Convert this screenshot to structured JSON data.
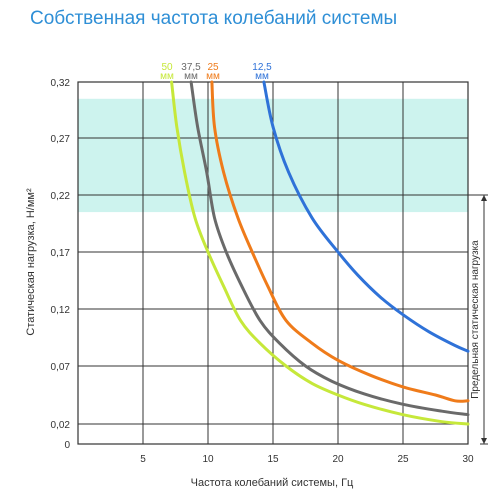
{
  "page": {
    "title": "Собственная частота колебаний системы"
  },
  "chart_data": {
    "type": "line",
    "title": "Собственная частота колебаний системы",
    "xlabel": "Частота колебаний системы, Гц",
    "ylabel": "Статическая нагрузка, Н/мм²",
    "xlim": [
      0,
      30
    ],
    "ylim": [
      0,
      0.32
    ],
    "x_ticks": [
      "0",
      "5",
      "10",
      "15",
      "20",
      "25",
      "30"
    ],
    "y_ticks": [
      "0",
      "0,02",
      "0,07",
      "0,12",
      "0,17",
      "0,22",
      "0,27",
      "0,32"
    ],
    "grid": true,
    "shaded_band": {
      "y_from": 0.205,
      "y_to": 0.305,
      "color": "#cdf3ee"
    },
    "limit_range": {
      "label": "Предельная статическая нагрузка",
      "y_from": 0.0,
      "y_to": 0.22
    },
    "series": [
      {
        "name": "50",
        "unit": "мм",
        "color": "#c6e83a",
        "points": [
          [
            7.2,
            0.32
          ],
          [
            7.6,
            0.28
          ],
          [
            8.2,
            0.24
          ],
          [
            9,
            0.2
          ],
          [
            10,
            0.17
          ],
          [
            11.2,
            0.14
          ],
          [
            12.5,
            0.11
          ],
          [
            14,
            0.09
          ],
          [
            16,
            0.07
          ],
          [
            18,
            0.055
          ],
          [
            20,
            0.045
          ],
          [
            22,
            0.037
          ],
          [
            25,
            0.028
          ],
          [
            28,
            0.022
          ],
          [
            30,
            0.02
          ]
        ]
      },
      {
        "name": "37,5",
        "unit": "мм",
        "color": "#6a6a6a",
        "points": [
          [
            8.7,
            0.32
          ],
          [
            9.2,
            0.28
          ],
          [
            9.9,
            0.24
          ],
          [
            10.5,
            0.2
          ],
          [
            11.4,
            0.17
          ],
          [
            12.6,
            0.14
          ],
          [
            14,
            0.11
          ],
          [
            15.5,
            0.09
          ],
          [
            17.5,
            0.07
          ],
          [
            19.5,
            0.057
          ],
          [
            22,
            0.046
          ],
          [
            25,
            0.037
          ],
          [
            28,
            0.031
          ],
          [
            30,
            0.028
          ]
        ]
      },
      {
        "name": "25",
        "unit": "мм",
        "color": "#ef7b1a",
        "points": [
          [
            10.3,
            0.32
          ],
          [
            10.5,
            0.28
          ],
          [
            11.2,
            0.24
          ],
          [
            12.3,
            0.2
          ],
          [
            13.4,
            0.17
          ],
          [
            14.6,
            0.14
          ],
          [
            16,
            0.11
          ],
          [
            18,
            0.09
          ],
          [
            20,
            0.075
          ],
          [
            22.5,
            0.062
          ],
          [
            25,
            0.052
          ],
          [
            27.5,
            0.045
          ],
          [
            29,
            0.04
          ],
          [
            30,
            0.04
          ]
        ]
      },
      {
        "name": "12,5",
        "unit": "мм",
        "color": "#2f72d8",
        "points": [
          [
            14.3,
            0.32
          ],
          [
            15,
            0.28
          ],
          [
            16.2,
            0.24
          ],
          [
            18,
            0.2
          ],
          [
            20,
            0.17
          ],
          [
            21.5,
            0.15
          ],
          [
            23.3,
            0.13
          ],
          [
            25,
            0.115
          ],
          [
            27,
            0.1
          ],
          [
            29,
            0.088
          ],
          [
            30,
            0.083
          ]
        ]
      }
    ]
  }
}
